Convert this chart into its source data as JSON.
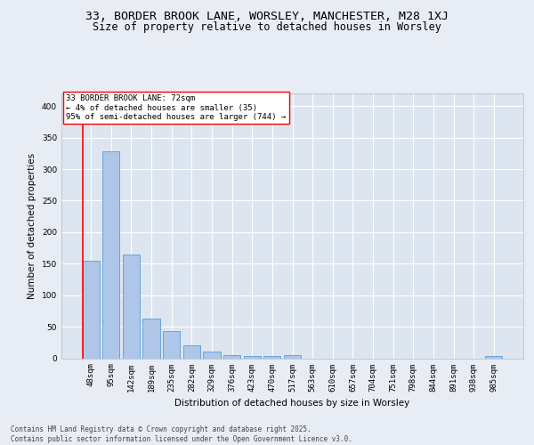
{
  "title_line1": "33, BORDER BROOK LANE, WORSLEY, MANCHESTER, M28 1XJ",
  "title_line2": "Size of property relative to detached houses in Worsley",
  "xlabel": "Distribution of detached houses by size in Worsley",
  "ylabel": "Number of detached properties",
  "bar_color": "#aec6e8",
  "bar_edge_color": "#5b9bd5",
  "background_color": "#dde6f0",
  "grid_color": "#ffffff",
  "fig_background": "#e8edf5",
  "categories": [
    "48sqm",
    "95sqm",
    "142sqm",
    "189sqm",
    "235sqm",
    "282sqm",
    "329sqm",
    "376sqm",
    "423sqm",
    "470sqm",
    "517sqm",
    "563sqm",
    "610sqm",
    "657sqm",
    "704sqm",
    "751sqm",
    "798sqm",
    "844sqm",
    "891sqm",
    "938sqm",
    "985sqm"
  ],
  "values": [
    155,
    328,
    165,
    63,
    43,
    20,
    10,
    5,
    4,
    4,
    5,
    0,
    0,
    0,
    0,
    0,
    0,
    0,
    0,
    0,
    3
  ],
  "ylim": [
    0,
    420
  ],
  "yticks": [
    0,
    50,
    100,
    150,
    200,
    250,
    300,
    350,
    400
  ],
  "annotation_text": "33 BORDER BROOK LANE: 72sqm\n← 4% of detached houses are smaller (35)\n95% of semi-detached houses are larger (744) →",
  "footnote": "Contains HM Land Registry data © Crown copyright and database right 2025.\nContains public sector information licensed under the Open Government Licence v3.0.",
  "title_fontsize": 9.5,
  "subtitle_fontsize": 8.5,
  "tick_fontsize": 6.5,
  "ylabel_fontsize": 7.5,
  "xlabel_fontsize": 7.5,
  "annot_fontsize": 6.5,
  "footnote_fontsize": 5.5
}
